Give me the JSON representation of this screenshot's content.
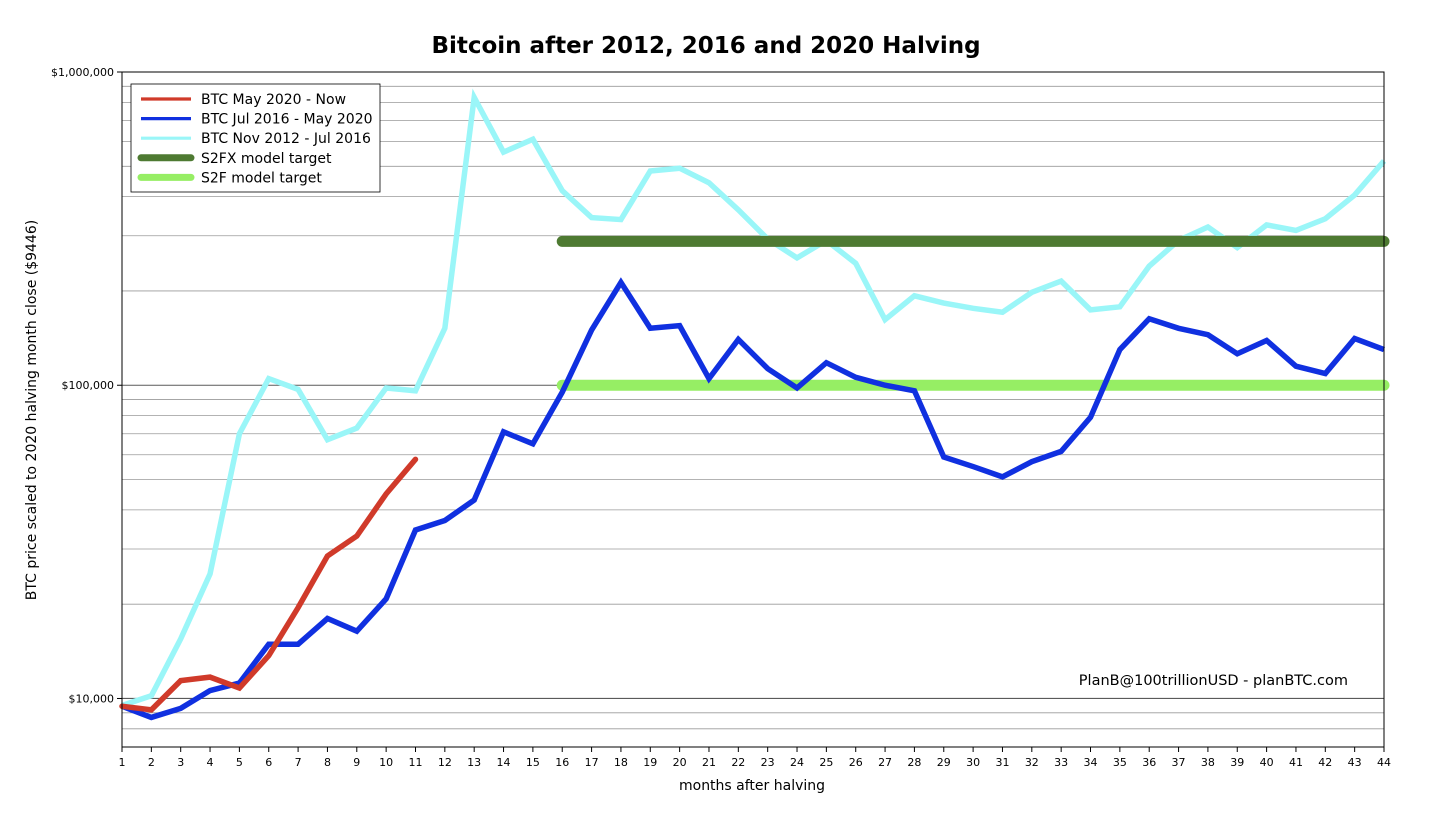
{
  "chart_data": {
    "type": "line",
    "title": "Bitcoin after 2012, 2016 and 2020 Halving",
    "xlabel": "months after halving",
    "ylabel": "BTC price scaled to 2020 halving month close ($9446)",
    "xlim": [
      1,
      44
    ],
    "ylim": [
      7000,
      1000000
    ],
    "yscale": "log",
    "x_ticks": [
      1,
      2,
      3,
      4,
      5,
      6,
      7,
      8,
      9,
      10,
      11,
      12,
      13,
      14,
      15,
      16,
      17,
      18,
      19,
      20,
      21,
      22,
      23,
      24,
      25,
      26,
      27,
      28,
      29,
      30,
      31,
      32,
      33,
      34,
      35,
      36,
      37,
      38,
      39,
      40,
      41,
      42,
      43,
      44
    ],
    "y_tick_labels": [
      {
        "value": 10000,
        "label": "$10,000"
      },
      {
        "value": 100000,
        "label": "$100,000"
      },
      {
        "value": 1000000,
        "label": "$1,000,000"
      }
    ],
    "grid": true,
    "legend_position": "top-left",
    "annotation": "PlanB@100trillionUSD  -  planBTC.com",
    "series": [
      {
        "name": "BTC May 2020 - Now",
        "color": "#d03a2a",
        "x": [
          1,
          2,
          3,
          4,
          5,
          6,
          7,
          8,
          9,
          10,
          11
        ],
        "values": [
          9446,
          9200,
          11400,
          11700,
          10800,
          13700,
          19500,
          28500,
          33000,
          45000,
          58000
        ]
      },
      {
        "name": "BTC Jul 2016 - May 2020",
        "color": "#1030e0",
        "x": [
          1,
          2,
          3,
          4,
          5,
          6,
          7,
          8,
          9,
          10,
          11,
          12,
          13,
          14,
          15,
          16,
          17,
          18,
          19,
          20,
          21,
          22,
          23,
          24,
          25,
          26,
          27,
          28,
          29,
          30,
          31,
          32,
          33,
          34,
          35,
          36,
          37,
          38,
          39,
          40,
          41,
          42,
          43,
          44
        ],
        "values": [
          9446,
          8700,
          9300,
          10600,
          11200,
          14900,
          14900,
          18000,
          16400,
          20800,
          34500,
          37000,
          43000,
          71000,
          65000,
          95000,
          150000,
          213000,
          152000,
          155000,
          105000,
          140000,
          113000,
          98000,
          118000,
          106000,
          100000,
          96000,
          59000,
          55000,
          51000,
          57000,
          61500,
          79000,
          130000,
          163000,
          152000,
          145000,
          126000,
          139000,
          115000,
          109000,
          141000,
          130000
        ]
      },
      {
        "name": "BTC Nov 2012 - Jul 2016",
        "color": "#9af6f8",
        "x": [
          1,
          2,
          3,
          4,
          5,
          6,
          7,
          8,
          9,
          10,
          11,
          12,
          13,
          14,
          15,
          16,
          17,
          18,
          19,
          20,
          21,
          22,
          23,
          24,
          25,
          26,
          27,
          28,
          29,
          30,
          31,
          32,
          33,
          34,
          35,
          36,
          37,
          38,
          39,
          40,
          41,
          42,
          43,
          44
        ],
        "values": [
          9500,
          10200,
          15500,
          25000,
          70000,
          105000,
          97000,
          67000,
          73000,
          98000,
          96000,
          152000,
          830000,
          555000,
          610000,
          418000,
          343000,
          338000,
          483000,
          493000,
          443000,
          363000,
          293000,
          255000,
          290000,
          245000,
          162000,
          193000,
          183000,
          176000,
          171000,
          198000,
          215000,
          174000,
          178000,
          240000,
          290000,
          320000,
          275000,
          325000,
          312000,
          340000,
          405000,
          520000
        ]
      },
      {
        "name": "S2FX model target",
        "color": "#4e7a32",
        "x": [
          16,
          44
        ],
        "values": [
          288000,
          288000
        ]
      },
      {
        "name": "S2F model target",
        "color": "#96ee64",
        "x": [
          16,
          44
        ],
        "values": [
          100000,
          100000
        ]
      }
    ]
  }
}
